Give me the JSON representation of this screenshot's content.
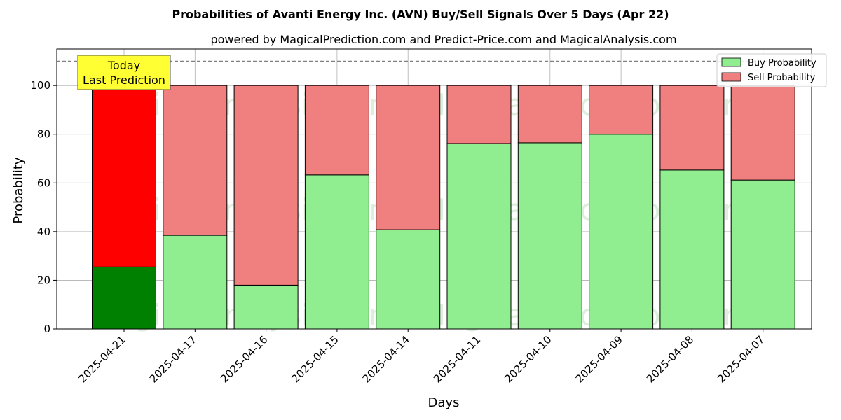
{
  "chart_data": {
    "type": "bar",
    "stacked": true,
    "title": "Probabilities of Avanti Energy Inc. (AVN) Buy/Sell Signals Over 5 Days (Apr 22)",
    "subtitle": "powered by MagicalPrediction.com and Predict-Price.com and MagicalAnalysis.com",
    "xlabel": "Days",
    "ylabel": "Probability",
    "ylim": [
      0,
      115
    ],
    "yticks": [
      0,
      20,
      40,
      60,
      80,
      100
    ],
    "reference_line": 110,
    "grid": true,
    "legend_position": "top-right",
    "categories": [
      "2025-04-21",
      "2025-04-17",
      "2025-04-16",
      "2025-04-15",
      "2025-04-14",
      "2025-04-11",
      "2025-04-10",
      "2025-04-09",
      "2025-04-08",
      "2025-04-07"
    ],
    "series": [
      {
        "name": "Buy Probability",
        "color": "#90ee90",
        "highlight_color": "#008000",
        "values": [
          25.5,
          38.5,
          18,
          63.3,
          40.8,
          76.2,
          76.5,
          80,
          65.3,
          61.2
        ]
      },
      {
        "name": "Sell Probability",
        "color": "#f08080",
        "highlight_color": "#ff0000",
        "values": [
          74.5,
          61.5,
          82,
          36.7,
          59.2,
          23.8,
          23.5,
          20,
          34.7,
          38.8
        ]
      }
    ],
    "annotation": {
      "lines": [
        "Today",
        "Last Prediction"
      ],
      "category": "2025-04-21",
      "color": "#ffff33"
    },
    "watermarks": [
      "MagicalAnalysis.com",
      "MagicalPrediction.com",
      "MagicalAnalysis.com",
      "MagicalPrediction.com",
      "MagicalAnalysis.com",
      "MagicalPrediction.com"
    ]
  }
}
